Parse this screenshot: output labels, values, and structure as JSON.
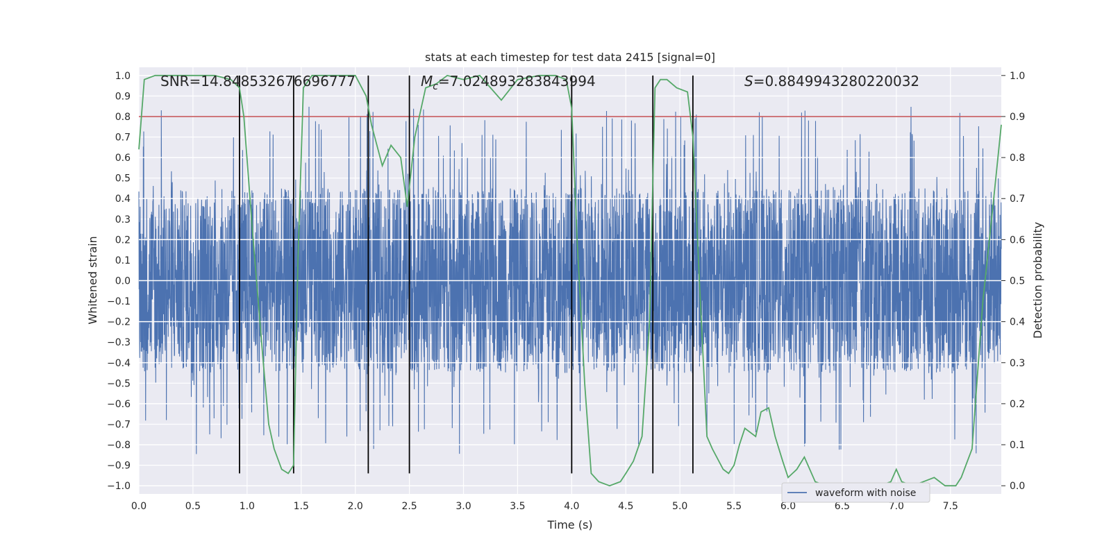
{
  "chart_data": {
    "type": "line",
    "title": "stats at each timestep for test data 2415 [signal=0]",
    "xlabel": "Time (s)",
    "ylabel": "Whitened strain",
    "y2label": "Detection probability",
    "xlim": [
      0.0,
      7.97
    ],
    "ylim": [
      -1.04,
      1.04
    ],
    "y2lim": [
      -0.02,
      1.02
    ],
    "xticks": [
      "0.0",
      "0.5",
      "1.0",
      "1.5",
      "2.0",
      "2.5",
      "3.0",
      "3.5",
      "4.0",
      "4.5",
      "5.0",
      "5.5",
      "6.0",
      "6.5",
      "7.0",
      "7.5"
    ],
    "yticks": [
      "1.0",
      "0.9",
      "0.8",
      "0.7",
      "0.6",
      "0.5",
      "0.4",
      "0.3",
      "0.2",
      "0.1",
      "0.0",
      "−0.1",
      "−0.2",
      "−0.3",
      "−0.4",
      "−0.5",
      "−0.6",
      "−0.7",
      "−0.8",
      "−0.9",
      "−1.0"
    ],
    "y2ticks": [
      "1.0",
      "0.9",
      "0.8",
      "0.7",
      "0.6",
      "0.5",
      "0.4",
      "0.3",
      "0.2",
      "0.1",
      "0.0"
    ],
    "annotations": {
      "snr": "SNR=14.848532676696777",
      "mc_symbol": "M",
      "mc_sub": "c",
      "mc_value": "=7.024893283843994",
      "s_symbol": "S",
      "s_value": "=0.8849943280220032"
    },
    "threshold": {
      "y2": 0.9,
      "color": "#c44e52"
    },
    "vertical_markers": [
      0.93,
      1.43,
      2.12,
      2.5,
      4.0,
      4.75,
      5.12
    ],
    "marker_y_range": [
      -0.94,
      1.0
    ],
    "legend": {
      "label": "waveform with noise",
      "location": "lower right"
    },
    "series": [
      {
        "name": "waveform with noise",
        "color": "#4c72b0",
        "axis": "left",
        "kind": "noise",
        "duration": 7.97,
        "sample_rate_shown": 1024,
        "envelope_abs": 0.45,
        "peak_max": 0.85,
        "peak_min": -0.94
      },
      {
        "name": "Detection probability",
        "color": "#55a868",
        "axis": "right",
        "x": [
          0.0,
          0.05,
          0.15,
          0.3,
          0.5,
          0.7,
          0.85,
          0.93,
          0.97,
          1.05,
          1.15,
          1.2,
          1.25,
          1.32,
          1.38,
          1.43,
          1.47,
          1.52,
          1.6,
          1.8,
          2.0,
          2.1,
          2.15,
          2.25,
          2.33,
          2.42,
          2.48,
          2.55,
          2.65,
          2.75,
          2.85,
          3.0,
          3.15,
          3.25,
          3.35,
          3.5,
          3.7,
          3.85,
          3.95,
          4.0,
          4.05,
          4.12,
          4.18,
          4.25,
          4.35,
          4.45,
          4.5,
          4.57,
          4.65,
          4.72,
          4.77,
          4.82,
          4.88,
          4.97,
          5.07,
          5.12,
          5.18,
          5.25,
          5.3,
          5.4,
          5.45,
          5.5,
          5.55,
          5.6,
          5.7,
          5.75,
          5.82,
          5.88,
          5.95,
          6.0,
          6.08,
          6.15,
          6.25,
          6.35,
          6.5,
          6.7,
          6.85,
          6.95,
          7.0,
          7.05,
          7.15,
          7.25,
          7.35,
          7.45,
          7.55,
          7.6,
          7.7,
          7.8,
          7.9,
          7.97
        ],
        "y": [
          0.82,
          0.99,
          1.0,
          1.0,
          1.0,
          1.0,
          0.99,
          0.97,
          0.9,
          0.62,
          0.3,
          0.15,
          0.09,
          0.04,
          0.03,
          0.05,
          0.55,
          0.97,
          1.0,
          1.0,
          1.0,
          0.95,
          0.88,
          0.78,
          0.83,
          0.8,
          0.68,
          0.85,
          0.97,
          0.98,
          1.0,
          0.99,
          1.0,
          0.97,
          0.94,
          0.99,
          1.0,
          1.0,
          0.99,
          0.92,
          0.6,
          0.25,
          0.03,
          0.01,
          0.0,
          0.01,
          0.03,
          0.06,
          0.12,
          0.4,
          0.97,
          0.99,
          0.99,
          0.97,
          0.96,
          0.85,
          0.5,
          0.12,
          0.09,
          0.04,
          0.03,
          0.05,
          0.1,
          0.14,
          0.12,
          0.18,
          0.19,
          0.12,
          0.06,
          0.02,
          0.04,
          0.07,
          0.01,
          0.0,
          0.0,
          0.0,
          0.0,
          0.01,
          0.04,
          0.01,
          0.0,
          0.01,
          0.02,
          0.0,
          0.0,
          0.02,
          0.09,
          0.45,
          0.7,
          0.88
        ]
      }
    ]
  }
}
